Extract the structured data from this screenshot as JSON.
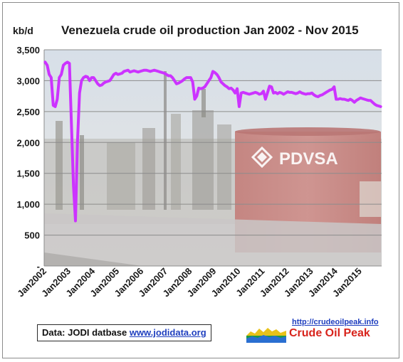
{
  "chart_data": {
    "type": "line",
    "title": "Venezuela crude oil production Jan 2002 - Nov 2015",
    "ylabel": "kb/d",
    "xlabel": "",
    "ylim": [
      0,
      3500
    ],
    "yticks": [
      "-",
      "500",
      "1,000",
      "1,500",
      "2,000",
      "2,500",
      "3,000",
      "3,500"
    ],
    "xticks": [
      "Jan2002",
      "Jan2003",
      "Jan2004",
      "Jan2005",
      "Jan2006",
      "Jan2007",
      "Jan2008",
      "Jan2009",
      "Jan2010",
      "Jan2011",
      "Jan2012",
      "Jan2013",
      "Jan2014",
      "Jan2015"
    ],
    "grid": true,
    "background_photo_text": "PDVSA",
    "series": [
      {
        "color": "#cc33ff",
        "x": [
          "2002-01",
          "2002-02",
          "2002-03",
          "2002-04",
          "2002-05",
          "2002-06",
          "2002-07",
          "2002-08",
          "2002-09",
          "2002-10",
          "2002-11",
          "2002-12",
          "2003-01",
          "2003-02",
          "2003-03",
          "2003-04",
          "2003-05",
          "2003-06",
          "2003-07",
          "2003-08",
          "2003-09",
          "2003-10",
          "2003-11",
          "2003-12",
          "2004-01",
          "2004-02",
          "2004-03",
          "2004-04",
          "2004-05",
          "2004-06",
          "2004-07",
          "2004-08",
          "2004-09",
          "2004-10",
          "2004-11",
          "2004-12",
          "2005-01",
          "2005-02",
          "2005-03",
          "2005-04",
          "2005-05",
          "2005-06",
          "2005-07",
          "2005-08",
          "2005-09",
          "2005-10",
          "2005-11",
          "2005-12",
          "2006-01",
          "2006-02",
          "2006-03",
          "2006-04",
          "2006-05",
          "2006-06",
          "2006-07",
          "2006-08",
          "2006-09",
          "2006-10",
          "2006-11",
          "2006-12",
          "2007-01",
          "2007-02",
          "2007-03",
          "2007-04",
          "2007-05",
          "2007-06",
          "2007-07",
          "2007-08",
          "2007-09",
          "2007-10",
          "2007-11",
          "2007-12",
          "2008-01",
          "2008-02",
          "2008-03",
          "2008-04",
          "2008-05",
          "2008-06",
          "2008-07",
          "2008-08",
          "2008-09",
          "2008-10",
          "2008-11",
          "2008-12",
          "2009-01",
          "2009-02",
          "2009-03",
          "2009-04",
          "2009-05",
          "2009-06",
          "2009-07",
          "2009-08",
          "2009-09",
          "2009-10",
          "2009-11",
          "2009-12",
          "2010-01",
          "2010-02",
          "2010-03",
          "2010-04",
          "2010-05",
          "2010-06",
          "2010-07",
          "2010-08",
          "2010-09",
          "2010-10",
          "2010-11",
          "2010-12",
          "2011-01",
          "2011-02",
          "2011-03",
          "2011-04",
          "2011-05",
          "2011-06",
          "2011-07",
          "2011-08",
          "2011-09",
          "2011-10",
          "2011-11",
          "2011-12",
          "2012-01",
          "2012-02",
          "2012-03",
          "2012-04",
          "2012-05",
          "2012-06",
          "2012-07",
          "2012-08",
          "2012-09",
          "2012-10",
          "2012-11",
          "2012-12",
          "2013-01",
          "2013-02",
          "2013-03",
          "2013-04",
          "2013-05",
          "2013-06",
          "2013-07",
          "2013-08",
          "2013-09",
          "2013-10",
          "2013-11",
          "2013-12",
          "2014-01",
          "2014-02",
          "2014-03",
          "2014-04",
          "2014-05",
          "2014-06",
          "2014-07",
          "2014-08",
          "2014-09",
          "2014-10",
          "2014-11",
          "2014-12",
          "2015-01",
          "2015-02",
          "2015-03",
          "2015-04",
          "2015-05",
          "2015-06",
          "2015-07",
          "2015-08",
          "2015-09",
          "2015-10",
          "2015-11"
        ],
        "values": [
          3300,
          3250,
          3100,
          3050,
          2600,
          2580,
          2700,
          3050,
          3100,
          3250,
          3280,
          3300,
          3280,
          2300,
          1300,
          730,
          2000,
          2800,
          3000,
          3050,
          3070,
          3060,
          3000,
          3050,
          3050,
          3000,
          2950,
          2920,
          2930,
          2960,
          2980,
          2990,
          3000,
          3050,
          3100,
          3120,
          3100,
          3110,
          3120,
          3150,
          3160,
          3170,
          3140,
          3150,
          3160,
          3150,
          3140,
          3150,
          3160,
          3170,
          3170,
          3160,
          3150,
          3160,
          3170,
          3160,
          3150,
          3140,
          3130,
          3120,
          3100,
          3080,
          3080,
          3050,
          3000,
          2950,
          2960,
          2980,
          3000,
          3030,
          3050,
          3050,
          3050,
          2980,
          2700,
          2750,
          2880,
          2870,
          2880,
          2900,
          2950,
          3000,
          3050,
          3150,
          3130,
          3100,
          3050,
          2980,
          2950,
          2920,
          2900,
          2870,
          2880,
          2850,
          2800,
          2870,
          2580,
          2800,
          2810,
          2800,
          2790,
          2780,
          2790,
          2800,
          2810,
          2800,
          2780,
          2790,
          2830,
          2700,
          2800,
          2910,
          2900,
          2800,
          2810,
          2790,
          2810,
          2800,
          2780,
          2800,
          2820,
          2810,
          2810,
          2800,
          2790,
          2800,
          2820,
          2800,
          2790,
          2780,
          2790,
          2790,
          2800,
          2770,
          2750,
          2740,
          2760,
          2770,
          2790,
          2810,
          2830,
          2850,
          2860,
          2900,
          2700,
          2700,
          2710,
          2700,
          2700,
          2690,
          2680,
          2700,
          2680,
          2650,
          2680,
          2700,
          2720,
          2710,
          2700,
          2690,
          2680,
          2680,
          2650,
          2620,
          2600,
          2590,
          2580
        ]
      }
    ]
  },
  "footer": {
    "source_prefix": "Data: JODI datbase ",
    "source_link": "www.jodidata.org",
    "brand_url": "http://crudeoilpeak.info",
    "brand_name": "Crude Oil Peak"
  }
}
